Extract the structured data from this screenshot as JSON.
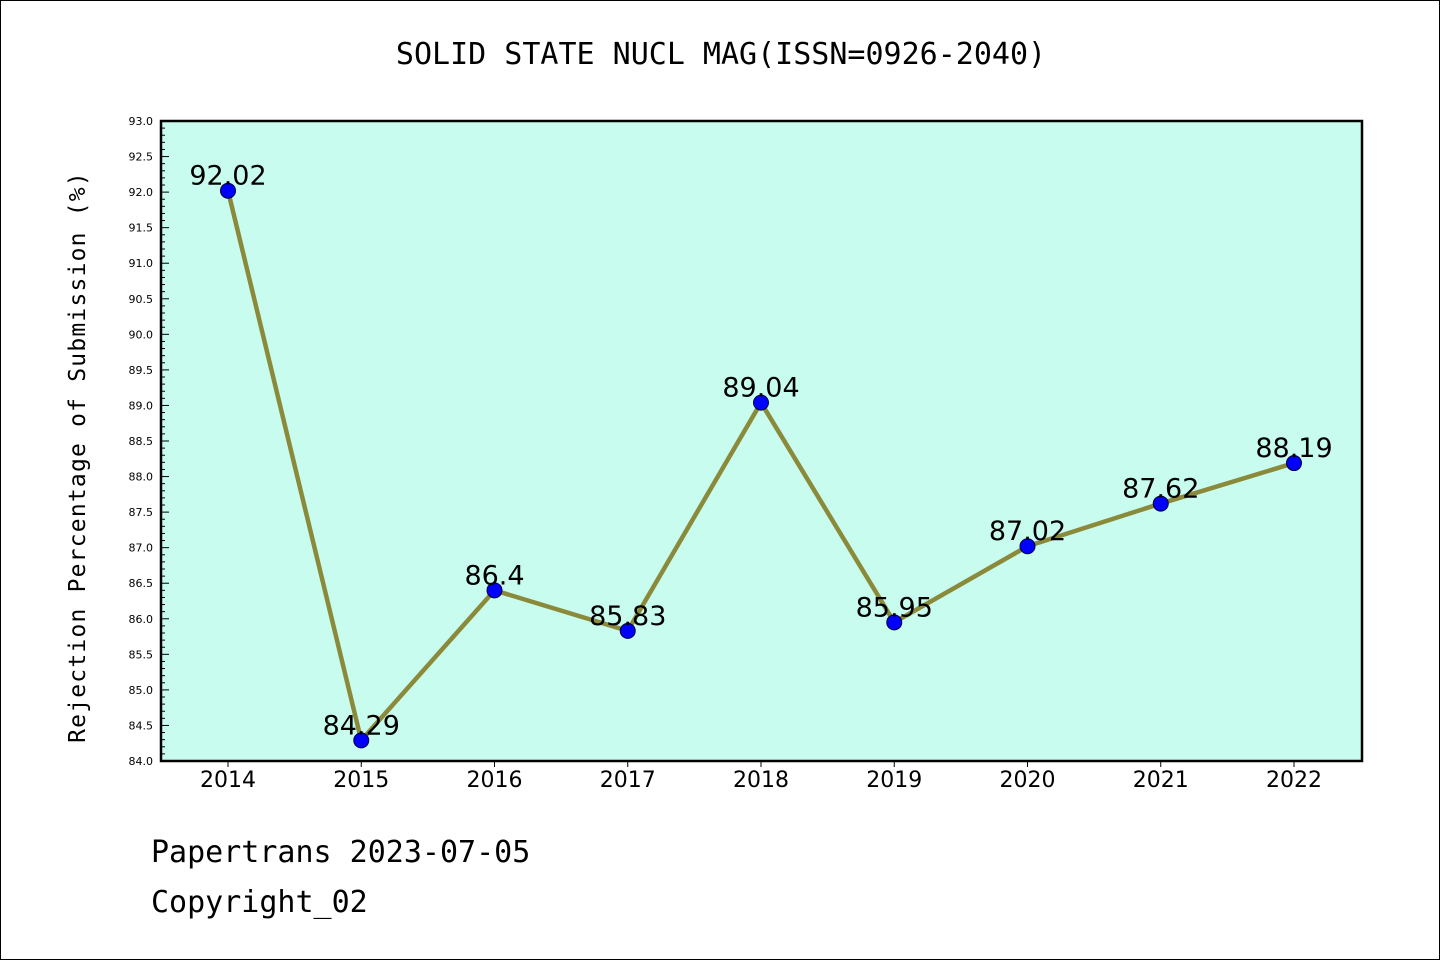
{
  "header": {
    "title": "SOLID STATE NUCL MAG(ISSN=0926-2040)"
  },
  "footer": {
    "date_line": "Papertrans 2023-07-05",
    "copyright": "Copyright_02"
  },
  "colors": {
    "plot_background": "#c8fcee",
    "line": "#8b8a3b",
    "marker": "#0000ff"
  },
  "chart_data": {
    "type": "line",
    "title": "SOLID STATE NUCL MAG(ISSN=0926-2040)",
    "xlabel": "",
    "ylabel": "Rejection Percentage of Submission (%)",
    "categories": [
      "2014",
      "2015",
      "2016",
      "2017",
      "2018",
      "2019",
      "2020",
      "2021",
      "2022"
    ],
    "values": [
      92.02,
      84.29,
      86.4,
      85.83,
      89.04,
      85.95,
      87.02,
      87.62,
      88.19
    ],
    "data_labels": [
      "92.02",
      "84.29",
      "86.4",
      "85.83",
      "89.04",
      "85.95",
      "87.02",
      "87.62",
      "88.19"
    ],
    "ylim": [
      84.0,
      93.0
    ],
    "yticks": [
      "84.0",
      "84.5",
      "85.0",
      "85.5",
      "86.0",
      "86.5",
      "87.0",
      "87.5",
      "88.0",
      "88.5",
      "89.0",
      "89.5",
      "90.0",
      "90.5",
      "91.0",
      "91.5",
      "92.0",
      "92.5",
      "93.0"
    ],
    "grid": false,
    "legend": "none"
  }
}
